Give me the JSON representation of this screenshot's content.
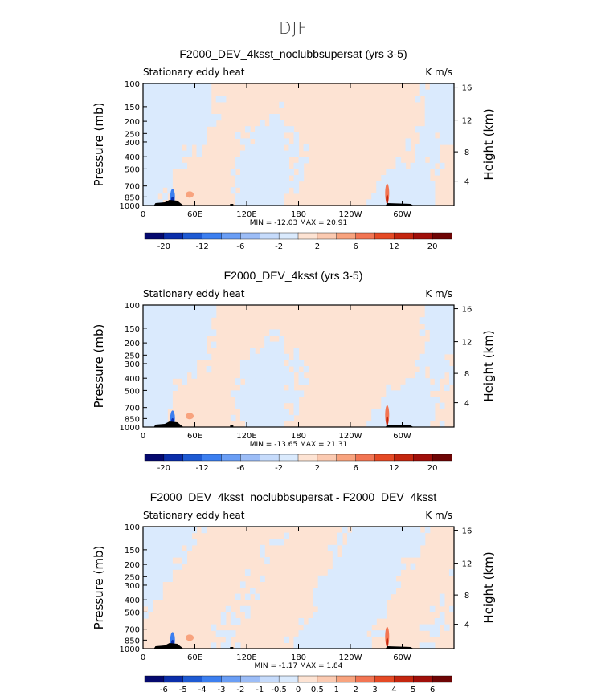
{
  "figure": {
    "title": "DJF"
  },
  "chart_data": [
    {
      "type": "heatmap",
      "title": "F2000_DEV_4ksst_noclubbsupersat (yrs 3-5)",
      "left_label": "Stationary eddy heat",
      "right_label": "K m/s",
      "ylabel": "Pressure (mb)",
      "y2label": "Height (km)",
      "x_ticks": [
        "0",
        "60E",
        "120E",
        "180",
        "120W",
        "60W"
      ],
      "y_ticks": [
        "100",
        "150",
        "200",
        "250",
        "300",
        "400",
        "500",
        "700",
        "850",
        "1000"
      ],
      "y2_ticks": [
        "16",
        "12",
        "8",
        "4"
      ],
      "stats": "MIN = -12.03   MAX =  20.91",
      "colorbar": {
        "tick_labels": [
          "-20",
          "-12",
          "-6",
          "-2",
          "2",
          "6",
          "12",
          "20"
        ],
        "colors": [
          "#05096e",
          "#0b2eaa",
          "#1e5ad3",
          "#3c7ff0",
          "#6a9ef5",
          "#9cbdf7",
          "#c6dbfb",
          "#daeafd",
          "#fde3d3",
          "#fbcab1",
          "#f8a37e",
          "#f27553",
          "#e54a25",
          "#c4260f",
          "#a00f0a",
          "#6e0505"
        ]
      },
      "dominant": "neutral"
    },
    {
      "type": "heatmap",
      "title": "F2000_DEV_4ksst (yrs 3-5)",
      "left_label": "Stationary eddy heat",
      "right_label": "K m/s",
      "ylabel": "Pressure (mb)",
      "y2label": "Height (km)",
      "x_ticks": [
        "0",
        "60E",
        "120E",
        "180",
        "120W",
        "60W"
      ],
      "y_ticks": [
        "100",
        "150",
        "200",
        "250",
        "300",
        "400",
        "500",
        "700",
        "850",
        "1000"
      ],
      "y2_ticks": [
        "16",
        "12",
        "8",
        "4"
      ],
      "stats": "MIN = -13.65   MAX =  21.31",
      "colorbar": {
        "tick_labels": [
          "-20",
          "-12",
          "-6",
          "-2",
          "2",
          "6",
          "12",
          "20"
        ],
        "colors": [
          "#05096e",
          "#0b2eaa",
          "#1e5ad3",
          "#3c7ff0",
          "#6a9ef5",
          "#9cbdf7",
          "#c6dbfb",
          "#daeafd",
          "#fde3d3",
          "#fbcab1",
          "#f8a37e",
          "#f27553",
          "#e54a25",
          "#c4260f",
          "#a00f0a",
          "#6e0505"
        ]
      },
      "dominant": "neutral"
    },
    {
      "type": "heatmap",
      "title": "F2000_DEV_4ksst_noclubbsupersat - F2000_DEV_4ksst",
      "left_label": "Stationary eddy heat",
      "right_label": "K m/s",
      "ylabel": "Pressure (mb)",
      "y2label": "Height (km)",
      "x_ticks": [
        "0",
        "60E",
        "120E",
        "180",
        "120W",
        "60W"
      ],
      "y_ticks": [
        "100",
        "150",
        "200",
        "250",
        "300",
        "400",
        "500",
        "700",
        "850",
        "1000"
      ],
      "y2_ticks": [
        "16",
        "12",
        "8",
        "4"
      ],
      "stats": "MIN =  -1.17   MAX =   1.84",
      "colorbar": {
        "tick_labels": [
          "-6",
          "-5",
          "-4",
          "-3",
          "-2",
          "-1",
          "-0.5",
          "0",
          "0.5",
          "1",
          "2",
          "3",
          "4",
          "5",
          "6"
        ],
        "colors": [
          "#05096e",
          "#0b2eaa",
          "#1e5ad3",
          "#3c7ff0",
          "#6a9ef5",
          "#9cbdf7",
          "#c6dbfb",
          "#daeafd",
          "#fde3d3",
          "#fbcab1",
          "#f8a37e",
          "#f27553",
          "#e54a25",
          "#c4260f",
          "#a00f0a",
          "#6e0505"
        ]
      },
      "dominant": "diff"
    }
  ]
}
